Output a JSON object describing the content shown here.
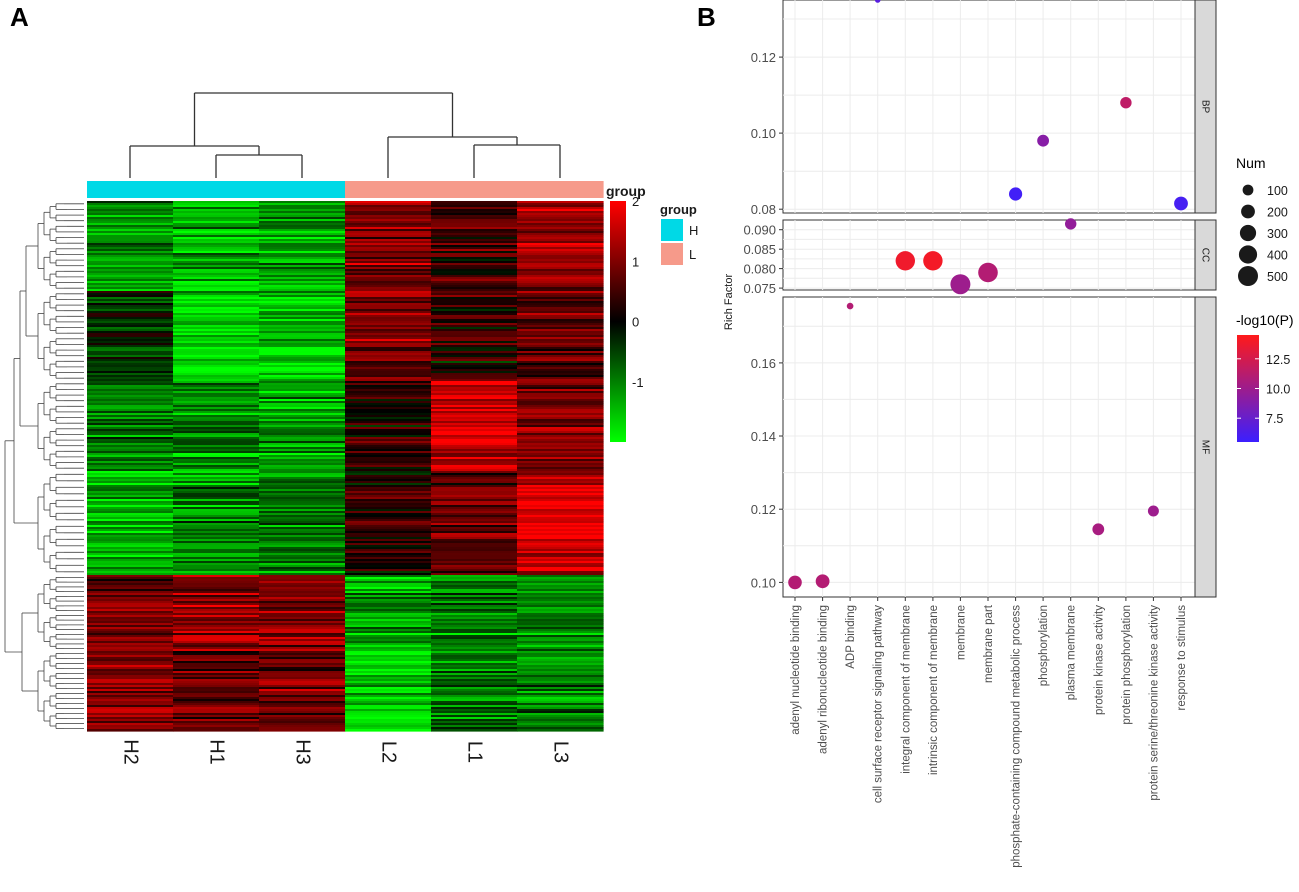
{
  "panels": {
    "a": "A",
    "b": "B"
  },
  "colors": {
    "group_H": "#00d9e6",
    "group_L": "#f69a8a",
    "heat_low": "#00ff00",
    "heat_mid": "#000000",
    "heat_high": "#ff0000",
    "p_low": "#3b1fff",
    "p_high": "#ff1a1a"
  },
  "chart_data": [
    {
      "type": "heatmap",
      "samples": [
        "H2",
        "H1",
        "H3",
        "L2",
        "L1",
        "L3"
      ],
      "groups": [
        "H",
        "H",
        "H",
        "L",
        "L",
        "L"
      ],
      "group_annotation_label": "group",
      "legend": {
        "title": "group",
        "items": [
          "H",
          "L"
        ]
      },
      "scale": {
        "min": -2,
        "max": 2,
        "ticks": [
          "2",
          "1",
          "0",
          "-1"
        ],
        "tick_values": [
          2,
          1,
          0,
          -1
        ]
      },
      "block_pattern": [
        {
          "sample_means": [
            -1.1,
            -1.4,
            -1.2,
            1.0,
            0.5,
            1.3
          ]
        },
        {
          "sample_means": [
            -0.3,
            -1.7,
            -1.5,
            1.0,
            0.3,
            0.7
          ]
        },
        {
          "sample_means": [
            -1.0,
            -1.2,
            -1.3,
            0.2,
            1.5,
            0.9
          ]
        },
        {
          "sample_means": [
            -1.3,
            -1.0,
            -0.9,
            0.4,
            0.8,
            1.7
          ]
        },
        {
          "sample_means": [
            0.9,
            1.2,
            1.0,
            -1.2,
            -1.0,
            -1.1
          ]
        },
        {
          "sample_means": [
            1.1,
            0.8,
            0.9,
            -1.7,
            -0.9,
            -1.0
          ]
        }
      ]
    },
    {
      "type": "scatter",
      "title": "",
      "ylabel": "Rich Factor",
      "x_categories": [
        "adenyl nucleotide binding",
        "adenyl ribonucleotide binding",
        "ADP binding",
        "cell surface receptor signaling pathway",
        "integral component of membrane",
        "intrinsic component of membrane",
        "membrane",
        "membrane part",
        "phosphate-containing compound metabolic process",
        "phosphorylation",
        "plasma membrane",
        "protein kinase activity",
        "protein phosphorylation",
        "protein serine/threonine kinase activity",
        "response to stimulus"
      ],
      "facets": [
        {
          "name": "BP",
          "ylim": [
            0.079,
            0.135
          ],
          "ticks": [
            0.08,
            0.1,
            0.12
          ],
          "tick_labels": [
            "0.08",
            "0.10",
            "0.12"
          ],
          "points": [
            {
              "term": "cell surface receptor signaling pathway",
              "rich_factor": 0.135,
              "num": 10,
              "neglog10p": 6.8
            },
            {
              "term": "phosphate-containing compound metabolic process",
              "rich_factor": 0.084,
              "num": 180,
              "neglog10p": 5.8
            },
            {
              "term": "phosphorylation",
              "rich_factor": 0.098,
              "num": 130,
              "neglog10p": 9.0
            },
            {
              "term": "protein phosphorylation",
              "rich_factor": 0.108,
              "num": 120,
              "neglog10p": 11.5
            },
            {
              "term": "response to stimulus",
              "rich_factor": 0.0815,
              "num": 200,
              "neglog10p": 6.0
            }
          ]
        },
        {
          "name": "CC",
          "ylim": [
            0.0745,
            0.0925
          ],
          "ticks": [
            0.075,
            0.08,
            0.085,
            0.09
          ],
          "tick_labels": [
            "0.075",
            "0.080",
            "0.085",
            "0.090"
          ],
          "points": [
            {
              "term": "integral component of membrane",
              "rich_factor": 0.082,
              "num": 460,
              "neglog10p": 13.8
            },
            {
              "term": "intrinsic component of membrane",
              "rich_factor": 0.082,
              "num": 470,
              "neglog10p": 14.0
            },
            {
              "term": "membrane",
              "rich_factor": 0.076,
              "num": 500,
              "neglog10p": 10.0
            },
            {
              "term": "membrane part",
              "rich_factor": 0.079,
              "num": 480,
              "neglog10p": 11.0
            },
            {
              "term": "plasma membrane",
              "rich_factor": 0.0915,
              "num": 120,
              "neglog10p": 9.5
            }
          ]
        },
        {
          "name": "MF",
          "ylim": [
            0.096,
            0.178
          ],
          "ticks": [
            0.1,
            0.12,
            0.14,
            0.16
          ],
          "tick_labels": [
            "0.10",
            "0.12",
            "0.14",
            "0.16"
          ],
          "points": [
            {
              "term": "adenyl nucleotide binding",
              "rich_factor": 0.1,
              "num": 190,
              "neglog10p": 11.0
            },
            {
              "term": "adenyl ribonucleotide binding",
              "rich_factor": 0.1003,
              "num": 200,
              "neglog10p": 11.0
            },
            {
              "term": "ADP binding",
              "rich_factor": 0.1755,
              "num": 20,
              "neglog10p": 11.0
            },
            {
              "term": "protein kinase activity",
              "rich_factor": 0.1145,
              "num": 130,
              "neglog10p": 10.5
            },
            {
              "term": "protein serine/threonine kinase activity",
              "rich_factor": 0.1195,
              "num": 110,
              "neglog10p": 10.0
            }
          ]
        }
      ],
      "size_legend": {
        "title": "Num",
        "labels": [
          "100",
          "200",
          "300",
          "400",
          "500"
        ],
        "values": [
          100,
          200,
          300,
          400,
          500
        ]
      },
      "color_legend": {
        "title": "-log10(P)",
        "labels": [
          "12.5",
          "10.0",
          "7.5"
        ],
        "values": [
          12.5,
          10.0,
          7.5
        ],
        "range": [
          5.5,
          14.5
        ]
      }
    }
  ]
}
